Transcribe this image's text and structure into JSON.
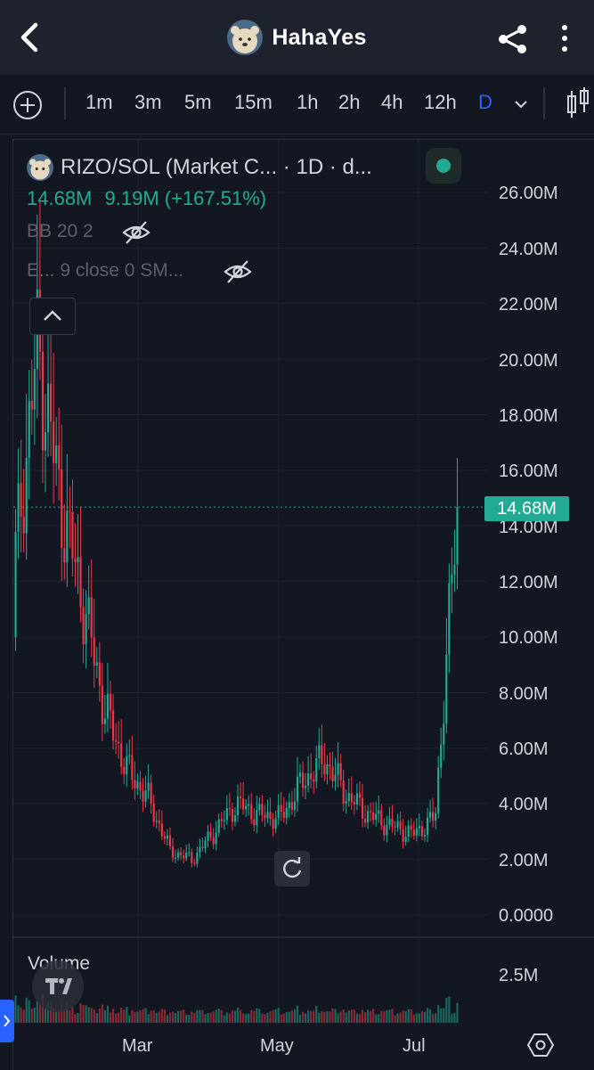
{
  "header": {
    "back_icon": "chevron-left-icon",
    "app_title": "HahaYes",
    "share_icon": "share-icon",
    "menu_icon": "more-vertical-icon"
  },
  "timeframes": {
    "add_icon": "plus-circle-icon",
    "items": [
      "1m",
      "3m",
      "5m",
      "15m",
      "1h",
      "2h",
      "4h",
      "12h",
      "D"
    ],
    "active": "D",
    "dropdown_icon": "chevron-down-icon",
    "chart_type_icon": "candles-icon"
  },
  "legend": {
    "symbol": "RIZO/SOL (Market C... · 1D · d...",
    "last": "14.68M",
    "change": "9.19M (+167.51%)",
    "indicator1": "BB 20 2",
    "indicator2": "E... 9 close 0 SM...",
    "status_color": "#22ab94"
  },
  "price_axis": {
    "labels": [
      "26.00M",
      "24.00M",
      "22.00M",
      "20.00M",
      "18.00M",
      "16.00M",
      "14.00M",
      "12.00M",
      "10.00M",
      "8.00M",
      "6.00M",
      "4.00M",
      "2.00M",
      "0.0000"
    ],
    "last_price_tag": "14.68M"
  },
  "volume": {
    "label": "Volume",
    "axis_label": "2.5M"
  },
  "time_axis": {
    "labels": [
      "Mar",
      "May",
      "Jul"
    ]
  },
  "colors": {
    "up": "#22ab94",
    "down": "#f23645",
    "background": "#131722",
    "accent": "#2962ff"
  },
  "chart_data": {
    "type": "candlestick",
    "title": "",
    "series": [
      {
        "name": "RIZO/SOL (Market Cap)",
        "approx_close_path": [
          [
            "Jan",
            13.0
          ],
          [
            "Jan",
            20.5
          ],
          [
            "Jan",
            15.0
          ],
          [
            "Feb",
            11.5
          ],
          [
            "Feb",
            7.5
          ],
          [
            "Feb",
            5.3
          ],
          [
            "Mar",
            4.2
          ],
          [
            "Mar",
            2.3
          ],
          [
            "Mar",
            2.0
          ],
          [
            "Apr",
            3.0
          ],
          [
            "Apr",
            4.0
          ],
          [
            "Apr",
            3.6
          ],
          [
            "May",
            3.5
          ],
          [
            "May",
            4.8
          ],
          [
            "May",
            5.6
          ],
          [
            "Jun",
            4.3
          ],
          [
            "Jun",
            3.6
          ],
          [
            "Jun",
            3.2
          ],
          [
            "Jul",
            2.9
          ],
          [
            "Jul",
            3.5
          ],
          [
            "Jul",
            14.68
          ]
        ]
      }
    ],
    "last_value": "14.68M",
    "ylim": [
      0,
      26000000
    ],
    "volume_axis_max": "2.5M",
    "x_ticks": [
      "Mar",
      "May",
      "Jul"
    ]
  }
}
